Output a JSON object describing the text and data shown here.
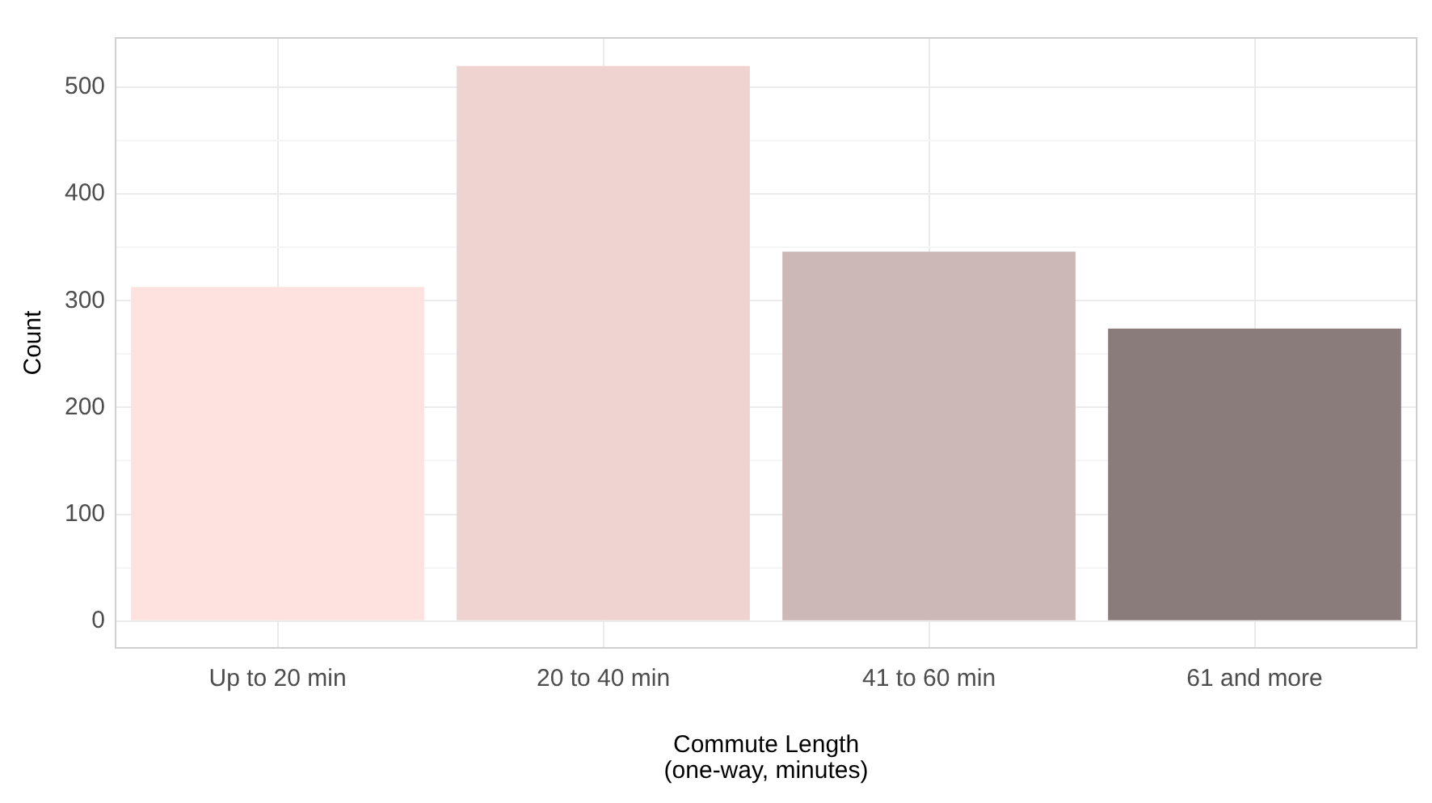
{
  "chart_data": {
    "type": "bar",
    "xlabel": "Commute Length\n(one-way, minutes)",
    "ylabel": "Count",
    "categories": [
      "Up to 20 min",
      "20 to 40 min",
      "41 to 60 min",
      "61 and more"
    ],
    "values": [
      313,
      520,
      346,
      274
    ],
    "colors": [
      "#fde2df",
      "#eed3d0",
      "#ccb8b6",
      "#8a7c7b"
    ],
    "ylim": [
      -26,
      547
    ],
    "yticks": [
      0,
      {
        "value": 50,
        "label": null
      },
      100,
      {
        "value": 150,
        "label": null
      },
      200,
      {
        "value": 250,
        "label": null
      },
      300,
      {
        "value": 350,
        "label": null
      },
      400,
      {
        "value": 450,
        "label": null
      },
      500
    ],
    "grid": true
  }
}
